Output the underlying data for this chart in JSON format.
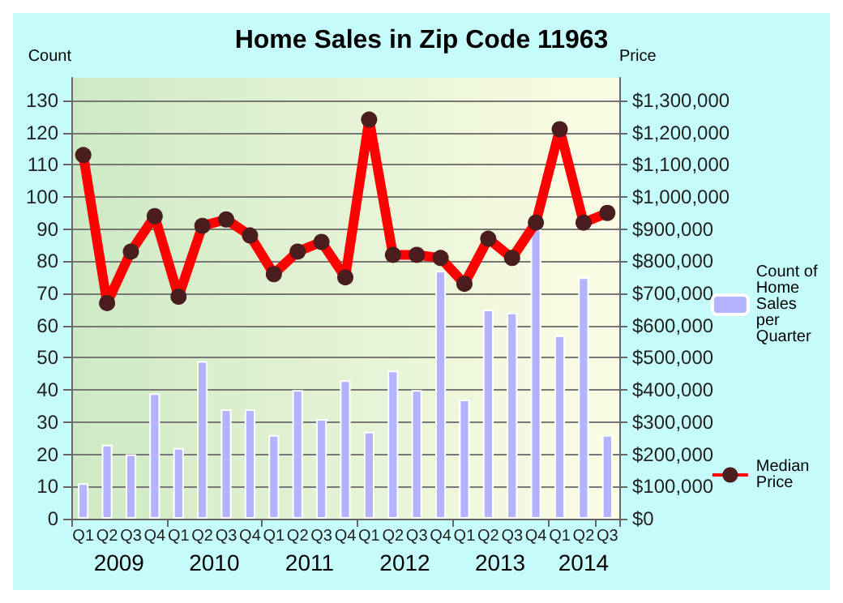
{
  "chart_data": {
    "type": "bar",
    "title": "Home Sales in Zip Code 11963",
    "ylabel": "Count",
    "y2label": "Price",
    "categories": [
      "Q1",
      "Q2",
      "Q3",
      "Q4",
      "Q1",
      "Q2",
      "Q3",
      "Q4",
      "Q1",
      "Q2",
      "Q3",
      "Q4",
      "Q1",
      "Q2",
      "Q3",
      "Q4",
      "Q1",
      "Q2",
      "Q3",
      "Q4",
      "Q1",
      "Q2",
      "Q3"
    ],
    "annotations": [
      "2009",
      "2010",
      "2011",
      "2012",
      "2013",
      "2014"
    ],
    "series": [
      {
        "name": "Count of Home Sales per Quarter",
        "color": "#b3b3ff",
        "values": [
          11,
          23,
          20,
          39,
          22,
          49,
          34,
          34,
          26,
          40,
          31,
          43,
          27,
          46,
          40,
          77,
          37,
          65,
          64,
          90,
          57,
          75,
          26
        ]
      },
      {
        "name": "Median Price",
        "type": "line",
        "axis": "y2",
        "color": "#ff0000",
        "marker": "circle",
        "values": [
          1130000,
          670000,
          830000,
          940000,
          690000,
          910000,
          930000,
          880000,
          760000,
          830000,
          860000,
          750000,
          1240000,
          820000,
          820000,
          810000,
          730000,
          870000,
          810000,
          920000,
          1210000,
          920000,
          950000
        ]
      }
    ],
    "ylim": [
      0,
      137
    ],
    "yticks": [
      0,
      10,
      20,
      30,
      40,
      50,
      60,
      70,
      80,
      90,
      100,
      110,
      120,
      130
    ],
    "y2lim": [
      0,
      1370000
    ],
    "y2ticks": [
      {
        "value": 0,
        "label": "$0"
      },
      {
        "value": 100000,
        "label": "$100,000"
      },
      {
        "value": 200000,
        "label": "$200,000"
      },
      {
        "value": 300000,
        "label": "$300,000"
      },
      {
        "value": 400000,
        "label": "$400,000"
      },
      {
        "value": 500000,
        "label": "$500,000"
      },
      {
        "value": 600000,
        "label": "$600,000"
      },
      {
        "value": 700000,
        "label": "$700,000"
      },
      {
        "value": 800000,
        "label": "$800,000"
      },
      {
        "value": 900000,
        "label": "$900,000"
      },
      {
        "value": 1000000,
        "label": "$1,000,000"
      },
      {
        "value": 1100000,
        "label": "$1,100,000"
      },
      {
        "value": 1200000,
        "label": "$1,200,000"
      },
      {
        "value": 1300000,
        "label": "$1,300,000"
      }
    ],
    "grid": "y",
    "legend": "right"
  }
}
